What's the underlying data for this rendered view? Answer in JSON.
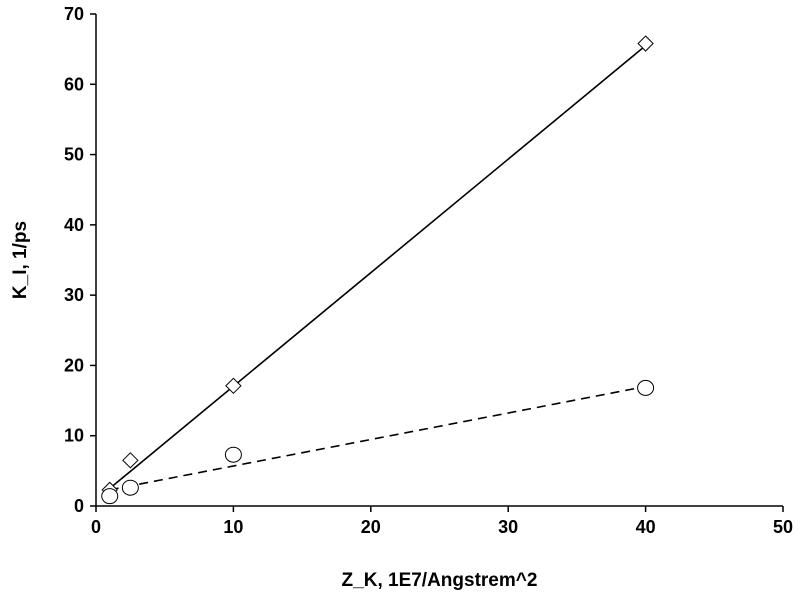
{
  "chart_data": {
    "type": "scatter",
    "xlabel": "Z_K, 1E7/Angstrem^2",
    "ylabel": "K_I, 1/ps",
    "xlim": [
      0,
      50
    ],
    "ylim": [
      0,
      70
    ],
    "x_ticks": [
      0,
      10,
      20,
      30,
      40,
      50
    ],
    "y_ticks": [
      0,
      10,
      20,
      30,
      40,
      50,
      60,
      70
    ],
    "x_tick_labels": [
      "0",
      "10",
      "20",
      "30",
      "40",
      "50"
    ],
    "y_tick_labels": [
      "0",
      "10",
      "20",
      "30",
      "40",
      "50",
      "60",
      "70"
    ],
    "grid": false,
    "legend": "none",
    "series": [
      {
        "marker": "diamond",
        "marker_fill": "#ffffff",
        "line_style": "solid",
        "color": "#000000",
        "points": [
          {
            "x": 1,
            "y": 2.3
          },
          {
            "x": 2.5,
            "y": 6.5
          },
          {
            "x": 10,
            "y": 17.1
          },
          {
            "x": 40,
            "y": 65.8
          }
        ],
        "fit": {
          "x": [
            1,
            40
          ],
          "y": [
            2.5,
            65.5
          ]
        }
      },
      {
        "marker": "circle",
        "marker_fill": "#ffffff",
        "line_style": "dashed",
        "color": "#000000",
        "points": [
          {
            "x": 1,
            "y": 1.4
          },
          {
            "x": 2.5,
            "y": 2.6
          },
          {
            "x": 10,
            "y": 7.3
          },
          {
            "x": 40,
            "y": 16.8
          }
        ],
        "fit": {
          "x": [
            1,
            40
          ],
          "y": [
            2.3,
            17.0
          ]
        }
      }
    ]
  }
}
